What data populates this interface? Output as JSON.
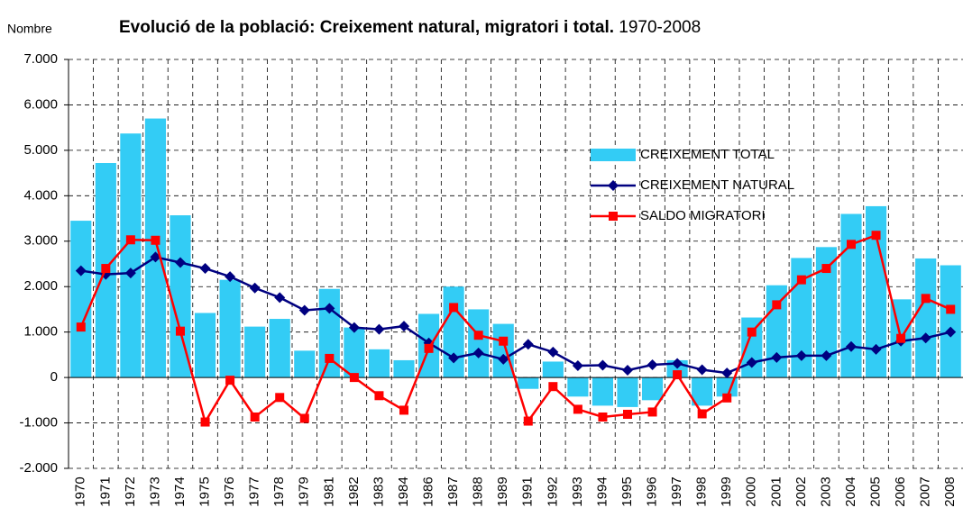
{
  "chart_data": {
    "type": "combo",
    "title": "Evolució de la població: Creixement natural, migratori i total.",
    "subtitle": "1970-2008",
    "y_label": "Nombre",
    "categories": [
      "1970",
      "1971",
      "1972",
      "1973",
      "1974",
      "1975",
      "1976",
      "1977",
      "1978",
      "1979",
      "1981",
      "1982",
      "1983",
      "1984",
      "1986",
      "1987",
      "1988",
      "1989",
      "1991",
      "1992",
      "1993",
      "1994",
      "1995",
      "1996",
      "1997",
      "1998",
      "1999",
      "2000",
      "2001",
      "2002",
      "2003",
      "2004",
      "2005",
      "2006",
      "2007",
      "2008"
    ],
    "series": [
      {
        "name": "CREIXEMENT TOTAL",
        "type": "bar",
        "color": "#33ccf5",
        "values": [
          3450,
          4720,
          5370,
          5700,
          3570,
          1420,
          2150,
          1120,
          1290,
          590,
          1950,
          1100,
          620,
          380,
          1400,
          2000,
          1500,
          1180,
          -250,
          350,
          -420,
          -620,
          -650,
          -500,
          380,
          -620,
          -420,
          1320,
          2030,
          2630,
          2870,
          3600,
          3770,
          1720,
          2620,
          2470
        ]
      },
      {
        "name": "CREIXEMENT NATURAL",
        "type": "line",
        "marker": "diamond",
        "color": "#000080",
        "values": [
          2350,
          2270,
          2300,
          2650,
          2530,
          2400,
          2220,
          1970,
          1760,
          1480,
          1520,
          1100,
          1060,
          1130,
          760,
          430,
          540,
          400,
          730,
          560,
          260,
          270,
          160,
          280,
          310,
          170,
          100,
          330,
          440,
          480,
          480,
          680,
          620,
          800,
          870,
          1000
        ]
      },
      {
        "name": "SALDO MIGRATORI",
        "type": "line",
        "marker": "square",
        "color": "#ff0000",
        "values": [
          1110,
          2400,
          3030,
          3020,
          1020,
          -980,
          -60,
          -870,
          -440,
          -900,
          420,
          0,
          -400,
          -720,
          640,
          1540,
          930,
          800,
          -960,
          -200,
          -700,
          -870,
          -810,
          -760,
          60,
          -800,
          -450,
          1000,
          1600,
          2150,
          2400,
          2930,
          3130,
          860,
          1740,
          1500
        ]
      }
    ],
    "ylim": [
      -2000,
      7000
    ],
    "yticks": [
      {
        "value": -2000,
        "label": "-2.000"
      },
      {
        "value": -1000,
        "label": "-1.000"
      },
      0,
      {
        "value": 1000,
        "label": "1.000"
      },
      {
        "value": 2000,
        "label": "2.000"
      },
      {
        "value": 3000,
        "label": "3.000"
      },
      {
        "value": 4000,
        "label": "4.000"
      },
      {
        "value": 5000,
        "label": "5.000"
      },
      {
        "value": 6000,
        "label": "6.000"
      },
      {
        "value": 7000,
        "label": "7.000"
      }
    ],
    "grid": true,
    "legend": "upper right"
  }
}
